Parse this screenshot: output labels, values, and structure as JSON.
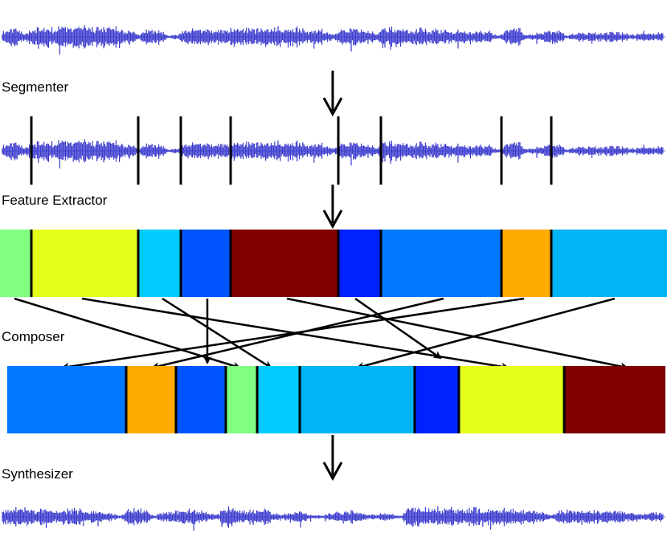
{
  "stages": {
    "segmenter": "Segmenter",
    "feature_extractor": "Feature Extractor",
    "composer": "Composer",
    "synthesizer": "Synthesizer"
  },
  "colors": {
    "waveform": "#3c3ccf",
    "axis": "#6f6fd8",
    "divider": "#000000",
    "arrow": "#000000",
    "segment_colors": {
      "s0": "#80ff80",
      "s1": "#e6ff1a",
      "s2": "#00ccff",
      "s3": "#0055ff",
      "s4": "#800000",
      "s5": "#0022ff",
      "s6": "#0078ff",
      "s7": "#ffaa00",
      "s8": "#00b4f5"
    }
  },
  "feature_segments": [
    "s0",
    "s1",
    "s2",
    "s3",
    "s4",
    "s5",
    "s6",
    "s7",
    "s8"
  ],
  "composed_segments": [
    "s6",
    "s7",
    "s3",
    "s0",
    "s2",
    "s8",
    "s5",
    "s1",
    "s4"
  ]
}
